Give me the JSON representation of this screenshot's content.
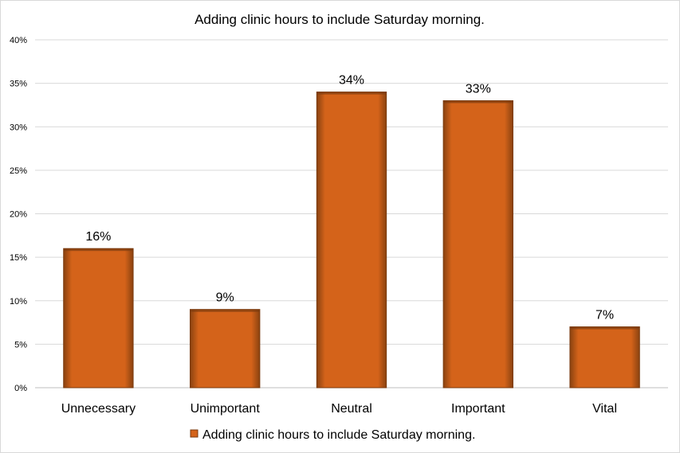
{
  "chart_data": {
    "type": "bar",
    "title": "Adding clinic hours to include Saturday morning.",
    "categories": [
      "Unnecessary",
      "Unimportant",
      "Neutral",
      "Important",
      "Vital"
    ],
    "series": [
      {
        "name": "Adding clinic hours to include Saturday morning.",
        "values": [
          16,
          9,
          34,
          33,
          7
        ],
        "data_labels": [
          "16%",
          "9%",
          "34%",
          "33%",
          "7%"
        ]
      }
    ],
    "y_ticks": [
      "0%",
      "5%",
      "10%",
      "15%",
      "20%",
      "25%",
      "30%",
      "35%",
      "40%"
    ],
    "ylim": [
      0,
      40
    ],
    "grid": true,
    "legend_position": "bottom",
    "bar_color": "#D4631A",
    "bar_edge_color": "#7A3A0E"
  }
}
